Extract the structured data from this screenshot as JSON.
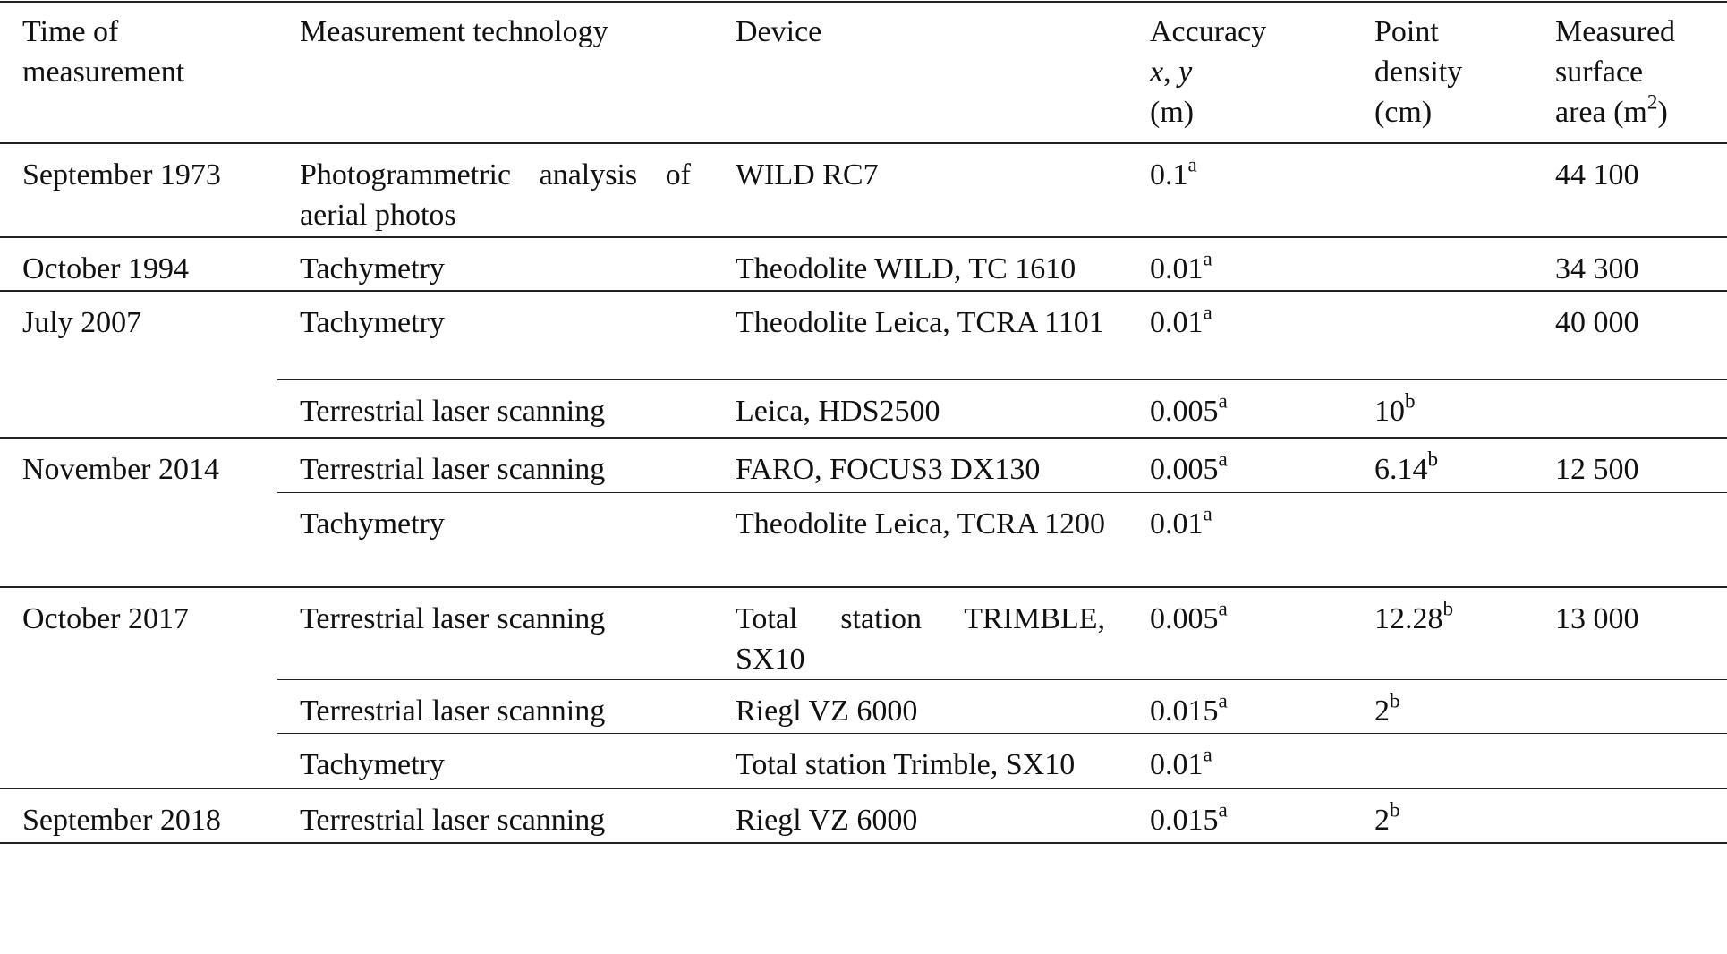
{
  "headers": {
    "time": [
      "Time of",
      "measurement"
    ],
    "technology": "Measurement technology",
    "device": "Device",
    "accuracy": [
      "Accuracy",
      "x",
      ", ",
      "y",
      "(m)"
    ],
    "density": [
      "Point",
      "density",
      "(cm)"
    ],
    "area": [
      "Measured",
      "surface",
      "area (m",
      "2",
      ")"
    ]
  },
  "groups": [
    {
      "time": "September 1973",
      "rows": [
        {
          "tech": "Photogrammetric analysis of aerial photos",
          "device": "WILD RC7",
          "acc": "0.1",
          "acc_note": "a",
          "dens": "",
          "dens_note": "",
          "area": "44 100",
          "h": 105
        }
      ]
    },
    {
      "time": "October 1994",
      "rows": [
        {
          "tech": "Tachymetry",
          "device": "Theodolite WILD, TC 1610",
          "acc": "0.01",
          "acc_note": "a",
          "dens": "",
          "dens_note": "",
          "area": "34 300",
          "h": 60
        }
      ]
    },
    {
      "time": "July 2007",
      "rows": [
        {
          "tech": "Tachymetry",
          "device": "Theodolite Leica, TCRA 1101",
          "acc": "0.01",
          "acc_note": "a",
          "dens": "",
          "dens_note": "",
          "area": "40 000",
          "h": 99
        },
        {
          "tech": "Terrestrial laser scanning",
          "device": "Leica, HDS2500",
          "acc": "0.005",
          "acc_note": "a",
          "dens": "10",
          "dens_note": "b",
          "area": "",
          "h": 65
        }
      ]
    },
    {
      "time": "November 2014",
      "rows": [
        {
          "tech": "Terrestrial laser scanning",
          "device": "FARO, FOCUS3 DX130",
          "acc": "0.005",
          "acc_note": "a",
          "dens": "6.14",
          "dens_note": "b",
          "area": "12 500",
          "h": 61
        },
        {
          "tech": "Tachymetry",
          "device": "Theodolite Leica, TCRA 1200",
          "acc": "0.01",
          "acc_note": "a",
          "dens": "",
          "dens_note": "",
          "area": "",
          "h": 106
        }
      ]
    },
    {
      "time": "October 2017",
      "rows": [
        {
          "tech": "Terrestrial laser scanning",
          "device": "Total station TRIMBLE, SX10",
          "acc": "0.005",
          "acc_note": "a",
          "dens": "12.28",
          "dens_note": "b",
          "area": "13 000",
          "h": 101
        },
        {
          "tech": "Terrestrial laser scanning",
          "device": "Riegl VZ 6000",
          "acc": "0.015",
          "acc_note": "a",
          "dens": "2",
          "dens_note": "b",
          "area": "",
          "h": 60
        },
        {
          "tech": "Tachymetry",
          "device": "Total station Trimble, SX10",
          "acc": "0.01",
          "acc_note": "a",
          "dens": "",
          "dens_note": "",
          "area": "",
          "h": 61
        }
      ]
    },
    {
      "time": "September 2018",
      "rows": [
        {
          "tech": "Terrestrial laser scanning",
          "device": "Riegl VZ 6000",
          "acc": "0.015",
          "acc_note": "a",
          "dens": "2",
          "dens_note": "b",
          "area": "",
          "h": 61
        }
      ]
    }
  ]
}
